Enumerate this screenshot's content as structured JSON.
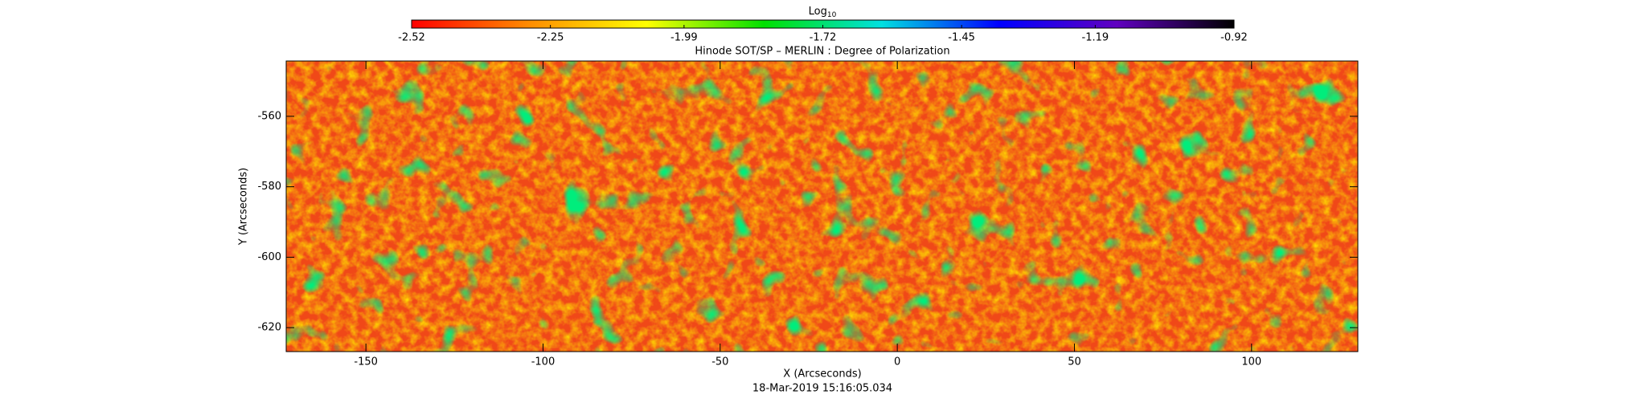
{
  "chart_data": {
    "type": "heatmap",
    "title": "Hinode SOT/SP – MERLIN : Degree of Polarization",
    "xlabel": "X (Arcseconds)",
    "ylabel": "Y (Arcseconds)",
    "footer": "18-Mar-2019 15:16:05.034",
    "xlim": [
      -172.5,
      130
    ],
    "xticks": [
      -150,
      -100,
      -50,
      0,
      50,
      100
    ],
    "ylim": [
      -626.8,
      -544.3
    ],
    "yticks": [
      -620,
      -600,
      -580,
      -560
    ],
    "colorbar": {
      "title": "Log",
      "title_sub": "10",
      "lim": [
        -2.52,
        -0.92
      ],
      "ticks": [
        -2.52,
        -2.25,
        -1.99,
        -1.72,
        -1.45,
        -1.19,
        -0.92
      ],
      "colormap": [
        "#ff0000",
        "#ff8c00",
        "#ffff00",
        "#00e000",
        "#00e0e0",
        "#0000ff",
        "#6000c0",
        "#000000"
      ]
    }
  }
}
